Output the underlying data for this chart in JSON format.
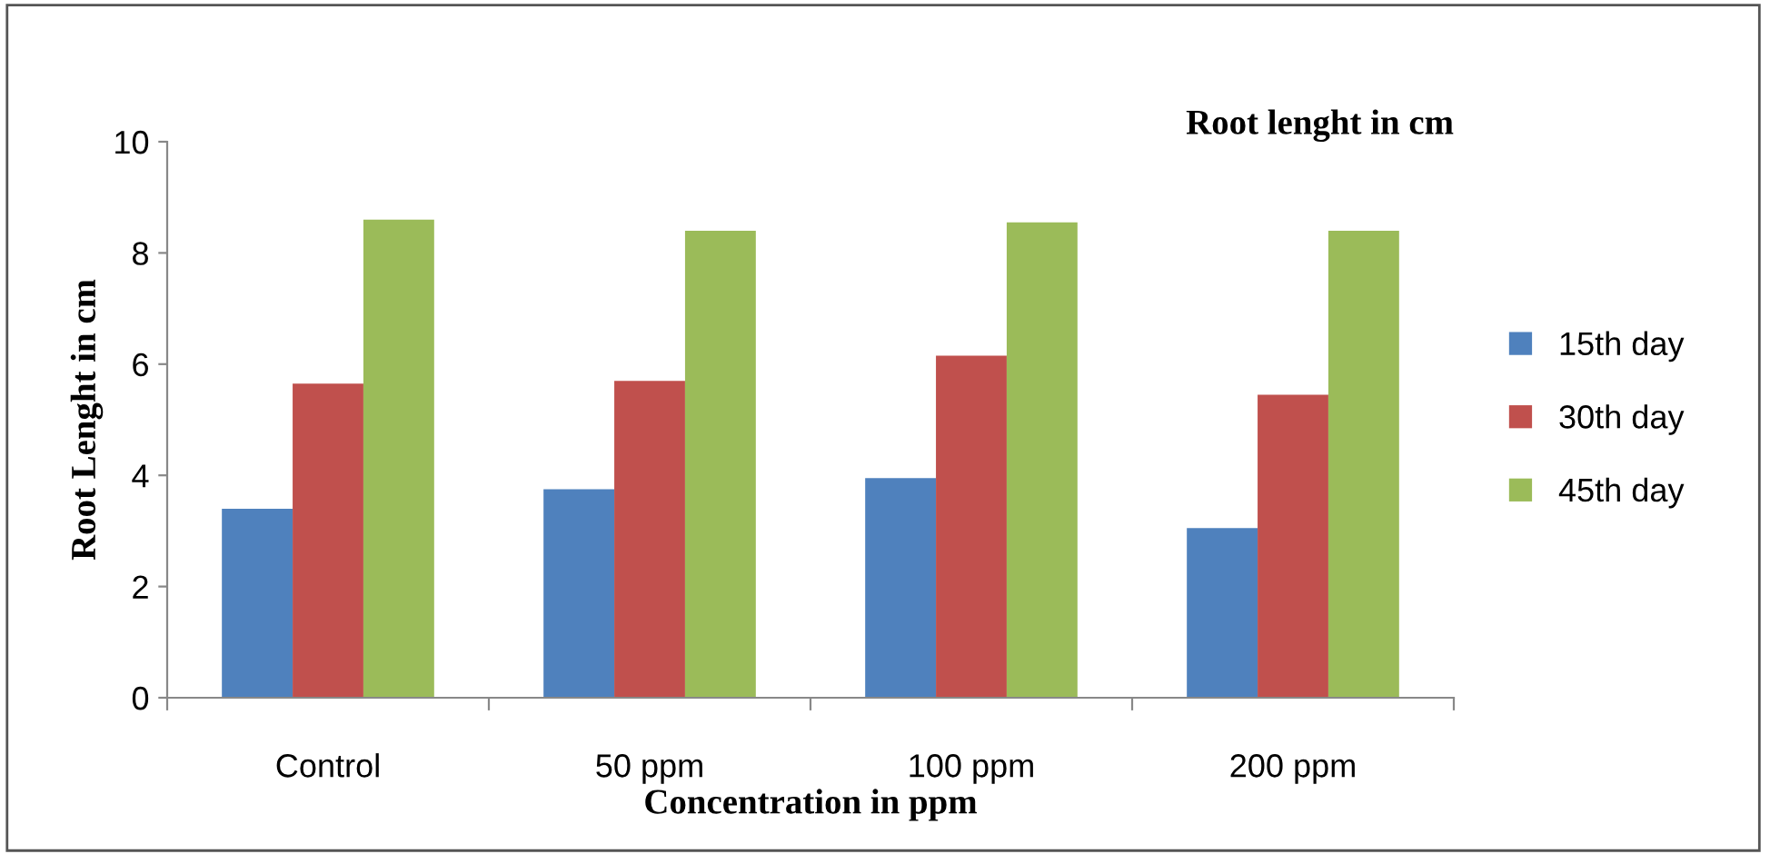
{
  "chart_data": {
    "type": "bar",
    "title": "Root lenght in cm",
    "xlabel": "Concentration in ppm",
    "ylabel": "Root Lenght in cm",
    "categories": [
      "Control",
      "50 ppm",
      "100 ppm",
      "200 ppm"
    ],
    "series": [
      {
        "name": "15th day",
        "color": "#4f81bd",
        "values": [
          3.4,
          3.75,
          3.95,
          3.05
        ]
      },
      {
        "name": "30th day",
        "color": "#c0504d",
        "values": [
          5.65,
          5.7,
          6.15,
          5.45
        ]
      },
      {
        "name": "45th day",
        "color": "#9bbb59",
        "values": [
          8.6,
          8.4,
          8.55,
          8.4
        ]
      }
    ],
    "ylim": [
      0,
      10
    ],
    "yticks": [
      0,
      2,
      4,
      6,
      8,
      10
    ],
    "grid": false,
    "legend": "right"
  }
}
